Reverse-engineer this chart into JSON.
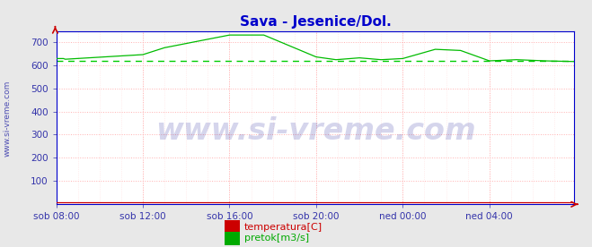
{
  "title": "Sava - Jesenice/Dol.",
  "title_color": "#0000cc",
  "title_fontsize": 11,
  "bg_color": "#e8e8e8",
  "plot_bg_color": "#ffffff",
  "watermark_text": "www.si-vreme.com",
  "watermark_color": "#1a1a99",
  "watermark_alpha": 0.18,
  "watermark_fontsize": 24,
  "side_label": "www.si-vreme.com",
  "side_label_color": "#3333aa",
  "xlim": [
    0,
    287
  ],
  "ylim": [
    0,
    750
  ],
  "yticks": [
    100,
    200,
    300,
    400,
    500,
    600,
    700
  ],
  "xtick_labels": [
    "sob 08:00",
    "sob 12:00",
    "sob 16:00",
    "sob 20:00",
    "ned 00:00",
    "ned 04:00"
  ],
  "xtick_positions": [
    0,
    48,
    96,
    144,
    192,
    240
  ],
  "grid_color_major": "#ffb0b0",
  "grid_color_minor": "#ffe0e0",
  "axis_color": "#0000cc",
  "tick_color": "#3333aa",
  "tick_fontsize": 7.5,
  "pretok_color": "#00bb00",
  "pretok_avg_color": "#00cc00",
  "pretok_avg": 620,
  "temperatura_color": "#cc0000",
  "temperatura_value": 8.5,
  "legend_items": [
    {
      "label": "temperatura[C]",
      "color": "#cc0000"
    },
    {
      "label": "pretok[m3/s]",
      "color": "#00aa00"
    }
  ]
}
